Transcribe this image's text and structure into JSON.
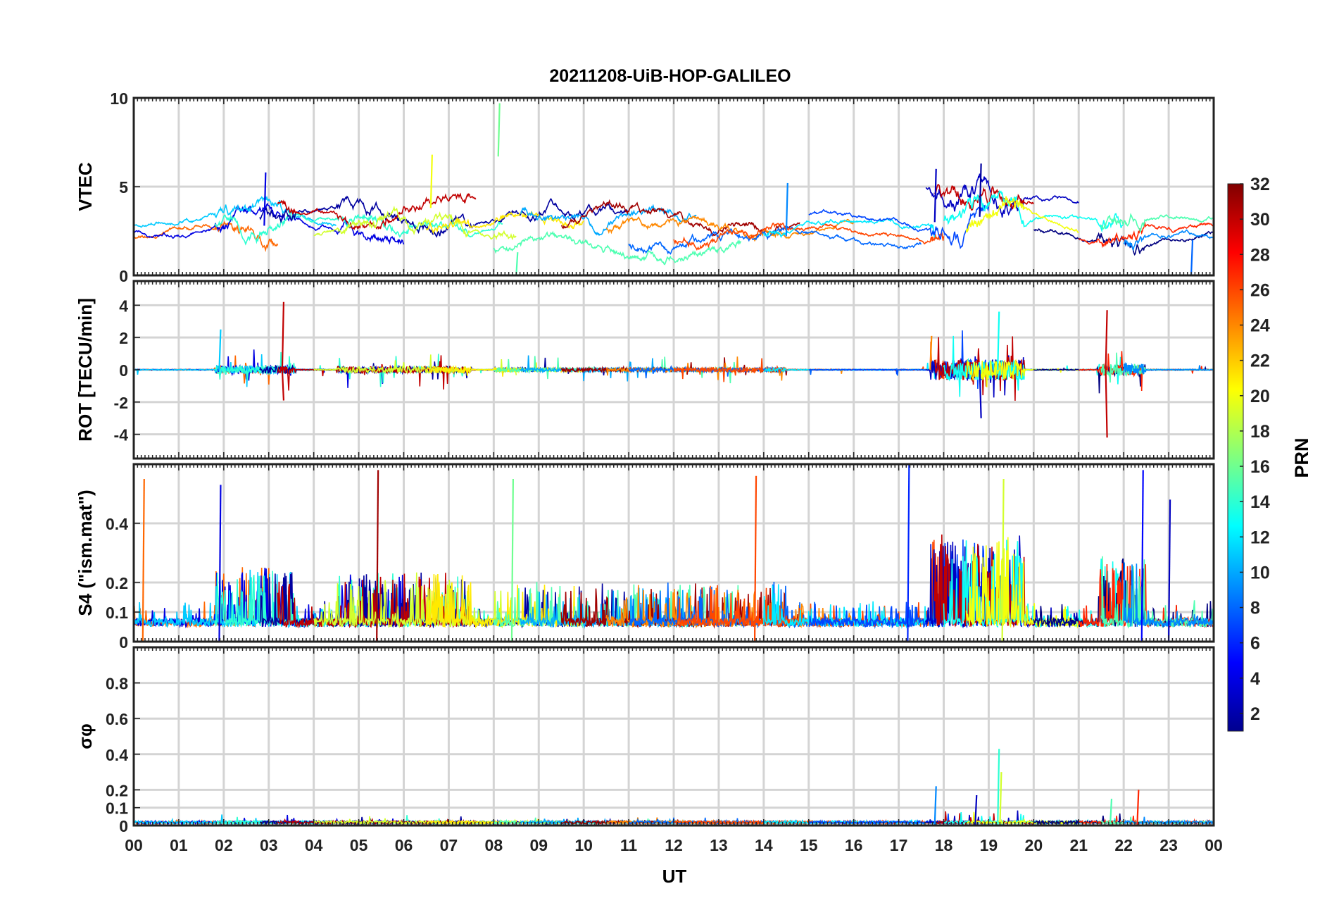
{
  "title": "20211208-UiB-HOP-GALILEO",
  "colorbar": {
    "label": "PRN",
    "min": 1,
    "max": 32,
    "ticks": [
      "2",
      "4",
      "6",
      "8",
      "10",
      "12",
      "14",
      "16",
      "18",
      "20",
      "22",
      "24",
      "26",
      "28",
      "30",
      "32"
    ],
    "colormap": "jet"
  },
  "chart_data": [
    {
      "type": "line",
      "panel": "VTEC",
      "ylabel": "VTEC",
      "xlabel": "",
      "xlim": [
        0,
        24
      ],
      "ylim": [
        0,
        10
      ],
      "yticks": [
        "0",
        "5",
        "10"
      ],
      "grid": true,
      "series_count_hint": 28,
      "features": [
        {
          "x": 2.9,
          "y": 5.8,
          "prn": 4
        },
        {
          "x": 6.6,
          "y": 6.8,
          "prn": 20
        },
        {
          "x": 8.1,
          "y": 9.7,
          "prn": 16
        },
        {
          "x": 8.5,
          "y": 1.3,
          "prn": 15
        },
        {
          "x": 14.5,
          "y": 5.2,
          "prn": 9
        },
        {
          "x": 17.8,
          "y": 6.0,
          "prn": 3
        },
        {
          "x": 18.8,
          "y": 6.3,
          "prn": 2
        },
        {
          "x": 23.5,
          "y": 2.0,
          "prn": 8
        }
      ]
    },
    {
      "type": "line",
      "panel": "ROT",
      "ylabel": "ROT [TECU/min]",
      "xlim": [
        0,
        24
      ],
      "ylim": [
        -5.5,
        5.5
      ],
      "yticks": [
        "-4",
        "-2",
        "0",
        "2",
        "4"
      ],
      "grid": true,
      "features": [
        {
          "x": 1.9,
          "y": 2.5,
          "prn": 11
        },
        {
          "x": 3.3,
          "y": 4.2,
          "prn": 30
        },
        {
          "x": 3.3,
          "y": -1.9,
          "prn": 30
        },
        {
          "x": 17.7,
          "y": 2.1,
          "prn": 24
        },
        {
          "x": 18.8,
          "y": -3.0,
          "prn": 3
        },
        {
          "x": 19.2,
          "y": 3.6,
          "prn": 13
        },
        {
          "x": 21.6,
          "y": 3.7,
          "prn": 30
        },
        {
          "x": 21.6,
          "y": -4.2,
          "prn": 30
        }
      ]
    },
    {
      "type": "line",
      "panel": "S4",
      "ylabel": "S4 (\"ism.mat\")",
      "xlim": [
        0,
        24
      ],
      "ylim": [
        0,
        0.6
      ],
      "yticks": [
        "0",
        "0.1",
        "0.2",
        "0.4"
      ],
      "grid": true,
      "features": [
        {
          "x": 0.2,
          "y": 0.55,
          "prn": 25
        },
        {
          "x": 1.9,
          "y": 0.53,
          "prn": 4
        },
        {
          "x": 5.4,
          "y": 0.58,
          "prn": 31
        },
        {
          "x": 8.4,
          "y": 0.55,
          "prn": 16
        },
        {
          "x": 13.8,
          "y": 0.56,
          "prn": 26
        },
        {
          "x": 17.2,
          "y": 0.6,
          "prn": 6
        },
        {
          "x": 19.3,
          "y": 0.55,
          "prn": 19
        },
        {
          "x": 22.4,
          "y": 0.58,
          "prn": 5
        },
        {
          "x": 23.0,
          "y": 0.48,
          "prn": 3
        }
      ]
    },
    {
      "type": "line",
      "panel": "sigma_phi",
      "ylabel": "σφ",
      "xlabel": "UT",
      "xlim": [
        0,
        24
      ],
      "ylim": [
        0,
        1.0
      ],
      "yticks": [
        "0",
        "0.1",
        "0.2",
        "0.4",
        "0.6",
        "0.8"
      ],
      "xticks": [
        "00",
        "01",
        "02",
        "03",
        "04",
        "05",
        "06",
        "07",
        "08",
        "09",
        "10",
        "11",
        "12",
        "13",
        "14",
        "15",
        "16",
        "17",
        "18",
        "19",
        "20",
        "21",
        "22",
        "23",
        "00"
      ],
      "grid": true,
      "features": [
        {
          "x": 17.8,
          "y": 0.22,
          "prn": 9
        },
        {
          "x": 18.7,
          "y": 0.17,
          "prn": 3
        },
        {
          "x": 19.2,
          "y": 0.43,
          "prn": 14
        },
        {
          "x": 19.25,
          "y": 0.3,
          "prn": 19
        },
        {
          "x": 21.7,
          "y": 0.15,
          "prn": 15
        },
        {
          "x": 22.3,
          "y": 0.2,
          "prn": 27
        }
      ]
    }
  ]
}
